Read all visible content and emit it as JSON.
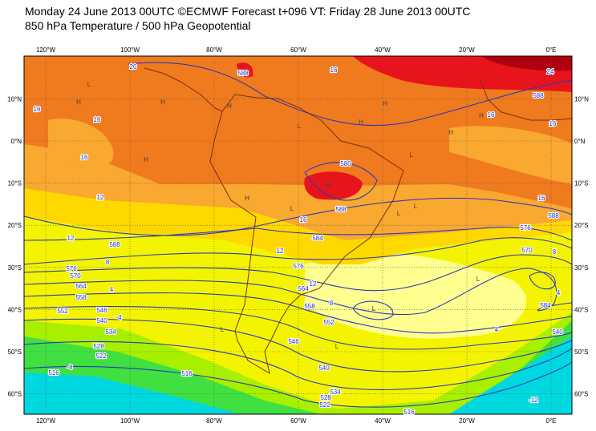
{
  "header": {
    "title": "Monday 24 June 2013 00UTC ©ECMWF Forecast t+096 VT: Friday 28 June 2013 00UTC",
    "subtitle": "850 hPa Temperature / 500 hPa Geopotential"
  },
  "map": {
    "lon_ticks": [
      {
        "value": -120,
        "label": "120°W"
      },
      {
        "value": -100,
        "label": "100°W"
      },
      {
        "value": -80,
        "label": "80°W"
      },
      {
        "value": -60,
        "label": "60°W"
      },
      {
        "value": -40,
        "label": "40°W"
      },
      {
        "value": -20,
        "label": "20°W"
      },
      {
        "value": 0,
        "label": "0°E"
      }
    ],
    "lat_ticks": [
      {
        "value": 10,
        "label": "10°N"
      },
      {
        "value": 0,
        "label": "0°N"
      },
      {
        "value": -10,
        "label": "10°S"
      },
      {
        "value": -20,
        "label": "20°S"
      },
      {
        "value": -30,
        "label": "30°S"
      },
      {
        "value": -40,
        "label": "40°S"
      },
      {
        "value": -50,
        "label": "50°S"
      },
      {
        "value": -60,
        "label": "60°S"
      }
    ],
    "contour_labels": [
      "20",
      "24",
      "16",
      "16",
      "16",
      "16",
      "16",
      "16",
      "16",
      "16",
      "12",
      "12",
      "12",
      "12",
      "8",
      "8",
      "8",
      "4",
      "4",
      "4",
      "-4",
      "-8",
      "-12",
      "588",
      "588",
      "588",
      "588",
      "588",
      "584",
      "584",
      "580",
      "576",
      "576",
      "576",
      "570",
      "570",
      "564",
      "564",
      "558",
      "558",
      "552",
      "552",
      "546",
      "540",
      "534",
      "528",
      "522",
      "516",
      "516",
      "516",
      "546",
      "540",
      "534",
      "528",
      "522",
      "540"
    ],
    "pressure_centers": [
      "H",
      "H",
      "H",
      "H",
      "H",
      "H",
      "H",
      "H",
      "H",
      "H",
      "L",
      "L",
      "L",
      "L",
      "L",
      "L",
      "L",
      "L",
      "L",
      "L"
    ]
  }
}
